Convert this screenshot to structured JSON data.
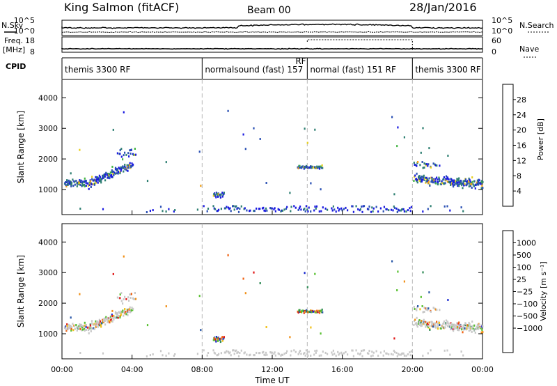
{
  "header": {
    "station": "King Salmon (fitACF)",
    "beam": "Beam 00",
    "date": "28/Jan/2016"
  },
  "side_labels": {
    "nsky": "N.Sky",
    "freq_1": "Freq.",
    "freq_2": "[MHz]",
    "cpid": "CPID",
    "nsearch": "N.Search",
    "nave": "Nave"
  },
  "noise_axis": {
    "left_ticks": [
      "10^5",
      "10^0"
    ],
    "right_ticks": [
      "10^5",
      "10^0"
    ]
  },
  "freq_axis": {
    "left_ticks": [
      "18",
      "8"
    ],
    "right_ticks": [
      "60",
      "0"
    ]
  },
  "cpid_segments": [
    {
      "label": "themis 3300 RF",
      "start_hour": 0,
      "end_hour": 8
    },
    {
      "label": "normalsound (fast) 157",
      "start_hour": 8,
      "end_hour": 14
    },
    {
      "label": "normal (fast) 151 RF",
      "start_hour": 14,
      "end_hour": 20
    },
    {
      "label": "themis 3300 RF",
      "start_hour": 20,
      "end_hour": 24
    }
  ],
  "rf_overlap_label": "RF",
  "chart_data": [
    {
      "type": "heatmap",
      "name": "power-panel",
      "ylabel": "Slant Range [km]",
      "ylim": [
        180,
        4600
      ],
      "xlim": [
        0,
        24
      ],
      "y_ticks": [
        "1000",
        "2000",
        "3000",
        "4000"
      ],
      "colorbar": {
        "label": "Power [dB]",
        "ticks": [
          "4",
          "8",
          "12",
          "16",
          "20",
          "24",
          "28"
        ],
        "colors": [
          "#1a1ae0",
          "#2a50b4",
          "#2e7f72",
          "#44b544",
          "#e8d020",
          "#f0a018",
          "#f07010",
          "#e02010"
        ]
      }
    },
    {
      "type": "heatmap",
      "name": "velocity-panel",
      "ylabel": "Slant Range [km]",
      "ylim": [
        180,
        4600
      ],
      "xlim": [
        0,
        24
      ],
      "y_ticks": [
        "1000",
        "2000",
        "3000",
        "4000"
      ],
      "xlabel": "Time UT",
      "x_ticks": [
        "00:00",
        "04:00",
        "08:00",
        "12:00",
        "16:00",
        "20:00",
        "00:00"
      ],
      "colorbar": {
        "label": "Velocity [m s⁻¹]",
        "ticks": [
          "1000",
          "500",
          "100",
          "25",
          "−25",
          "−100",
          "−500",
          "−1000"
        ],
        "colors": [
          "#1a2ad0",
          "#2a58a8",
          "#2e8a55",
          "#58c030",
          "#c8c8c8",
          "#c8c8c8",
          "#f0c018",
          "#f09018",
          "#f06010",
          "#e01818"
        ]
      }
    }
  ],
  "colors": {
    "ground_scatter": "#c8c8c8",
    "vline": "#b8b8b8"
  }
}
